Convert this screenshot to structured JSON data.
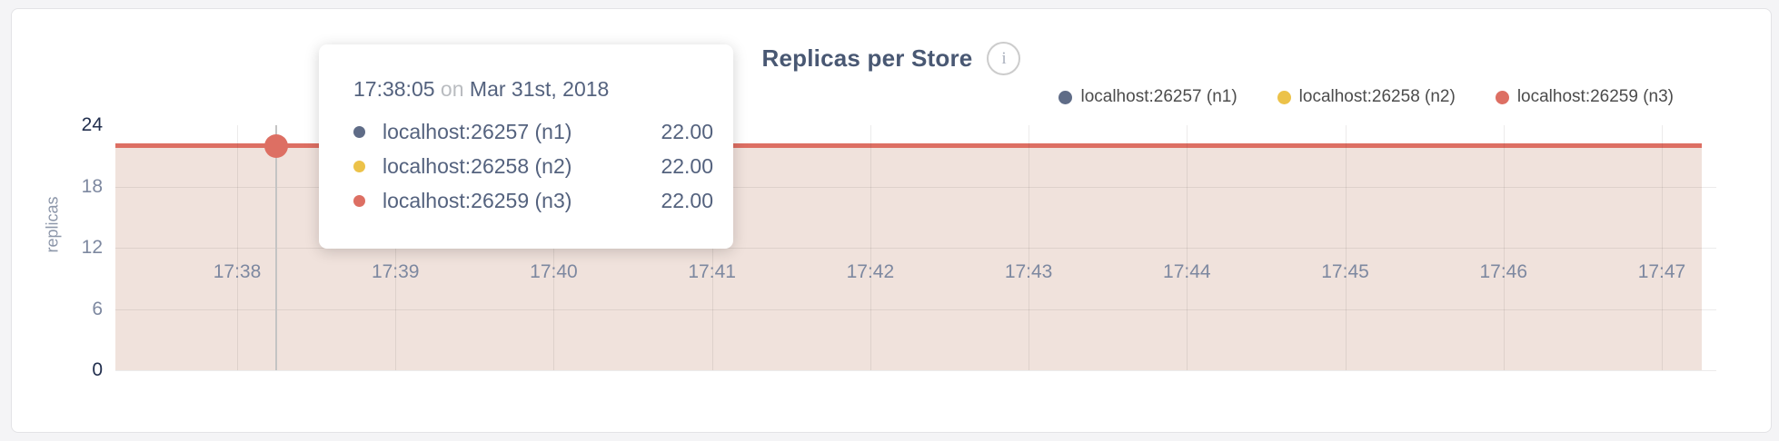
{
  "header": {
    "title": "Replicas per Store",
    "info_glyph": "i"
  },
  "legend": {
    "items": [
      {
        "label": "localhost:26257 (n1)",
        "color": "#5f6c87"
      },
      {
        "label": "localhost:26258 (n2)",
        "color": "#ecc249"
      },
      {
        "label": "localhost:26259 (n3)",
        "color": "#dd6f63"
      }
    ]
  },
  "tooltip": {
    "time": "17:38:05",
    "on": "on",
    "date": "Mar 31st, 2018",
    "rows": [
      {
        "label": "localhost:26257 (n1)",
        "value": "22.00",
        "color": "#5f6c87"
      },
      {
        "label": "localhost:26258 (n2)",
        "value": "22.00",
        "color": "#ecc249"
      },
      {
        "label": "localhost:26259 (n3)",
        "value": "22.00",
        "color": "#dd6f63"
      }
    ]
  },
  "chart_data": {
    "type": "area",
    "title": "Replicas per Store",
    "xlabel": "",
    "ylabel": "replicas",
    "ylim": [
      0,
      24
    ],
    "y_ticks": [
      24,
      18,
      12,
      6,
      0
    ],
    "x_ticks": [
      "17:38",
      "17:39",
      "17:40",
      "17:41",
      "17:42",
      "17:43",
      "17:44",
      "17:45",
      "17:46",
      "17:47"
    ],
    "grid": "on",
    "legend_position": "top-right",
    "series": [
      {
        "name": "localhost:26257 (n1)",
        "color": "#5f6c87",
        "value": 22,
        "shape": "constant horizontal line across full window"
      },
      {
        "name": "localhost:26258 (n2)",
        "color": "#ecc249",
        "value": 22,
        "shape": "constant horizontal line across full window"
      },
      {
        "name": "localhost:26259 (n3)",
        "color": "#dd6f63",
        "value": 22,
        "shape": "constant horizontal line across full window, drawn on top with area fill to 0"
      }
    ],
    "hover_point": {
      "time": "17:38:05",
      "date": "Mar 31st, 2018",
      "value": 22.0,
      "series": "localhost:26259 (n3)"
    }
  }
}
